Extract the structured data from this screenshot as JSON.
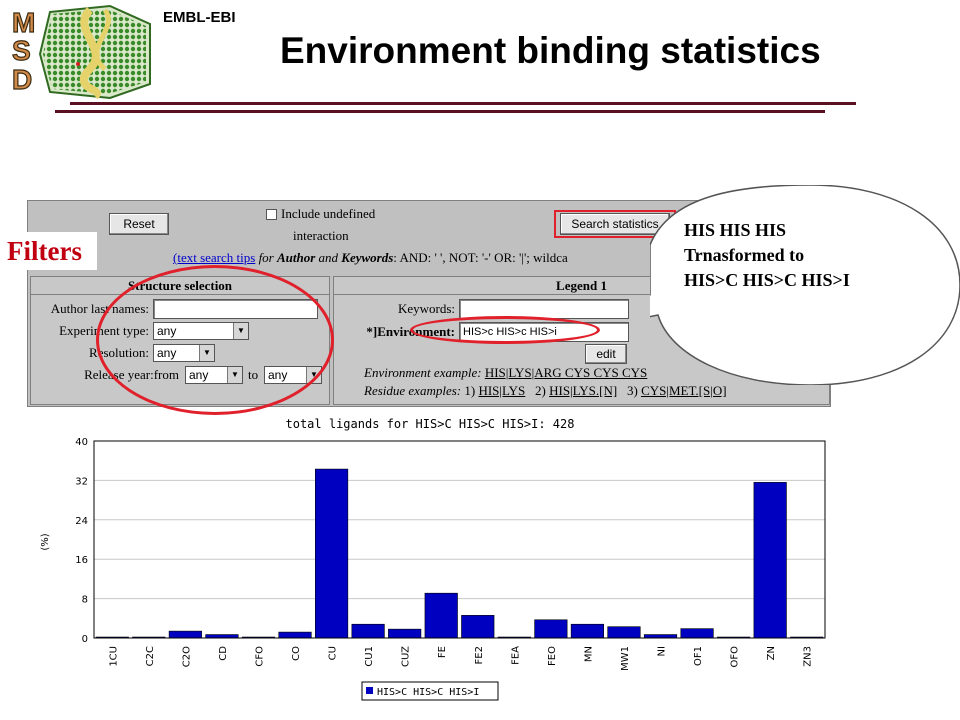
{
  "header": {
    "org": "EMBL-EBI",
    "logo_letters": [
      "M",
      "S",
      "D"
    ],
    "title": "Environment binding statistics"
  },
  "form": {
    "reset_label": "Reset",
    "include_undefined_label_1": "Include undefined",
    "include_undefined_label_2": "interaction",
    "search_label": "Search statistics",
    "tips_link": "(text search tips",
    "tips_for": " for ",
    "tips_author": "Author",
    "tips_and": " and ",
    "tips_keywords": "Keywords",
    "tips_rest": ": AND: ' ', NOT: '-' OR: '|'; wildca",
    "structure": {
      "heading": "Structure selection",
      "author_label": "Author last names:",
      "author_value": "",
      "exptype_label": "Experiment type:",
      "exptype_value": "any",
      "resolution_label": "Resolution:",
      "resolution_value": "any",
      "release_label": "Release year:from",
      "release_from": "any",
      "release_to_label": "to",
      "release_to": "any"
    },
    "legend": {
      "heading": "Legend 1",
      "keywords_label": "Keywords:",
      "keywords_value": "",
      "env_label": "*]Environment:",
      "env_value": "HIS>c HIS>c HIS>i",
      "edit_label": "edit",
      "env_example_label": "Environment example:",
      "env_example_value": "HIS|LYS|ARG CYS CYS CYS",
      "res_examples_label": "Residue examples:",
      "res_ex1_num": "1)",
      "res_ex1": "HIS|LYS",
      "res_ex2_num": "2)",
      "res_ex2": "HIS|LYS.[N]",
      "res_ex3_num": "3)",
      "res_ex3": "CYS|MET.[S|O]"
    }
  },
  "callouts": {
    "filters": "Filters",
    "bubble_line1": "HIS HIS HIS",
    "bubble_line2": "Trnasformed to",
    "bubble_line3": "HIS>C HIS>C HIS>I"
  },
  "colors": {
    "bar": "#0000c0",
    "accent_red": "#e0202a",
    "rule": "#5a1020",
    "logo_green": "#3a8a2a"
  },
  "chart_data": {
    "type": "bar",
    "title": "total ligands for HIS>C HIS>C HIS>I: 428",
    "xlabel": "",
    "ylabel": "(%)",
    "ylim": [
      0,
      40
    ],
    "yticks": [
      0,
      8,
      16,
      24,
      32,
      40
    ],
    "grid": true,
    "legend_position": "bottom",
    "categories": [
      "1CU",
      "C2C",
      "C2O",
      "CD",
      "CFO",
      "CO",
      "CU",
      "CU1",
      "CUZ",
      "FE",
      "FE2",
      "FEA",
      "FEO",
      "MN",
      "MW1",
      "NI",
      "OF1",
      "OFO",
      "ZN",
      "ZN3"
    ],
    "series": [
      {
        "name": "HIS>C HIS>C HIS>I",
        "values": [
          0.2,
          0.2,
          1.4,
          0.7,
          0.2,
          1.2,
          34.3,
          2.8,
          1.8,
          9.1,
          4.6,
          0.2,
          3.7,
          2.8,
          2.3,
          0.7,
          1.9,
          0.2,
          31.6,
          0.2
        ]
      }
    ]
  }
}
